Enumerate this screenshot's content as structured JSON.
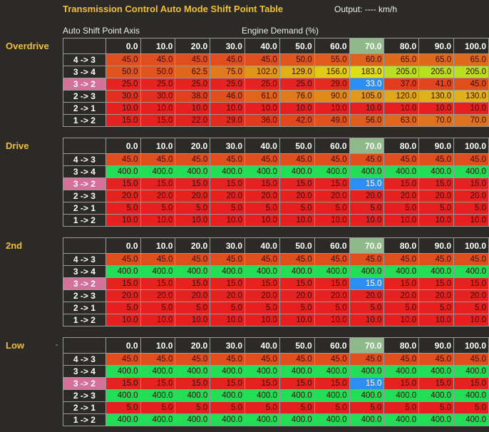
{
  "title": "Transmission Control Auto Mode Shift Point Table",
  "output": "Output: ---- km/h",
  "axis_label": "Auto Shift Point Axis",
  "demand_label": "Engine Demand (%)",
  "columns": [
    "0.0",
    "10.0",
    "20.0",
    "30.0",
    "40.0",
    "50.0",
    "60.0",
    "70.0",
    "80.0",
    "90.0",
    "100.0"
  ],
  "highlight_column": 7,
  "selected_row_label": "3 -> 2",
  "row_labels": [
    "4 -> 3",
    "3 -> 4",
    "3 -> 2",
    "2 -> 3",
    "2 -> 1",
    "1 -> 2"
  ],
  "colors": {
    "title": "#f0c030",
    "active_cell": "#2b8ef0",
    "selected_row": "#d4709a",
    "highlight_header": "#8fb98a"
  },
  "tables": [
    {
      "mode": "Overdrive",
      "marker": "",
      "rows": [
        [
          "45.0",
          "45.0",
          "45.0",
          "45.0",
          "45.0",
          "50.0",
          "55.0",
          "60.0",
          "65.0",
          "65.0",
          "65.0"
        ],
        [
          "50.0",
          "50.0",
          "62.5",
          "75.0",
          "102.0",
          "129.0",
          "156.0",
          "183.0",
          "205.0",
          "205.0",
          "205.0"
        ],
        [
          "25.0",
          "25.0",
          "25.0",
          "25.0",
          "25.0",
          "25.0",
          "29.0",
          "33.0",
          "37.0",
          "41.0",
          "45.0"
        ],
        [
          "30.0",
          "30.0",
          "38.0",
          "46.0",
          "61.0",
          "76.0",
          "90.0",
          "105.0",
          "120.0",
          "130.0",
          "130.0"
        ],
        [
          "10.0",
          "10.0",
          "10.0",
          "10.0",
          "10.0",
          "10.0",
          "10.0",
          "10.0",
          "10.0",
          "10.0",
          "10.0"
        ],
        [
          "15.0",
          "15.0",
          "22.0",
          "29.0",
          "36.0",
          "42.0",
          "49.0",
          "56.0",
          "63.0",
          "70.0",
          "70.0"
        ]
      ]
    },
    {
      "mode": "Drive",
      "marker": "",
      "rows": [
        [
          "45.0",
          "45.0",
          "45.0",
          "45.0",
          "45.0",
          "45.0",
          "45.0",
          "45.0",
          "45.0",
          "45.0",
          "45.0"
        ],
        [
          "400.0",
          "400.0",
          "400.0",
          "400.0",
          "400.0",
          "400.0",
          "400.0",
          "400.0",
          "400.0",
          "400.0",
          "400.0"
        ],
        [
          "15.0",
          "15.0",
          "15.0",
          "15.0",
          "15.0",
          "15.0",
          "15.0",
          "15.0",
          "15.0",
          "15.0",
          "15.0"
        ],
        [
          "20.0",
          "20.0",
          "20.0",
          "20.0",
          "20.0",
          "20.0",
          "20.0",
          "20.0",
          "20.0",
          "20.0",
          "20.0"
        ],
        [
          "5.0",
          "5.0",
          "5.0",
          "5.0",
          "5.0",
          "5.0",
          "5.0",
          "5.0",
          "5.0",
          "5.0",
          "5.0"
        ],
        [
          "10.0",
          "10.0",
          "10.0",
          "10.0",
          "10.0",
          "10.0",
          "10.0",
          "10.0",
          "10.0",
          "10.0",
          "10.0"
        ]
      ]
    },
    {
      "mode": "2nd",
      "marker": "",
      "rows": [
        [
          "45.0",
          "45.0",
          "45.0",
          "45.0",
          "45.0",
          "45.0",
          "45.0",
          "45.0",
          "45.0",
          "45.0",
          "45.0"
        ],
        [
          "400.0",
          "400.0",
          "400.0",
          "400.0",
          "400.0",
          "400.0",
          "400.0",
          "400.0",
          "400.0",
          "400.0",
          "400.0"
        ],
        [
          "15.0",
          "15.0",
          "15.0",
          "15.0",
          "15.0",
          "15.0",
          "15.0",
          "15.0",
          "15.0",
          "15.0",
          "15.0"
        ],
        [
          "20.0",
          "20.0",
          "20.0",
          "20.0",
          "20.0",
          "20.0",
          "20.0",
          "20.0",
          "20.0",
          "20.0",
          "20.0"
        ],
        [
          "5.0",
          "5.0",
          "5.0",
          "5.0",
          "5.0",
          "5.0",
          "5.0",
          "5.0",
          "5.0",
          "5.0",
          "5.0"
        ],
        [
          "10.0",
          "10.0",
          "10.0",
          "10.0",
          "10.0",
          "10.0",
          "10.0",
          "10.0",
          "10.0",
          "10.0",
          "10.0"
        ]
      ]
    },
    {
      "mode": "Low",
      "marker": "-",
      "rows": [
        [
          "45.0",
          "45.0",
          "45.0",
          "45.0",
          "45.0",
          "45.0",
          "45.0",
          "45.0",
          "45.0",
          "45.0",
          "45.0"
        ],
        [
          "400.0",
          "400.0",
          "400.0",
          "400.0",
          "400.0",
          "400.0",
          "400.0",
          "400.0",
          "400.0",
          "400.0",
          "400.0"
        ],
        [
          "15.0",
          "15.0",
          "15.0",
          "15.0",
          "15.0",
          "15.0",
          "15.0",
          "15.0",
          "15.0",
          "15.0",
          "15.0"
        ],
        [
          "400.0",
          "400.0",
          "400.0",
          "400.0",
          "400.0",
          "400.0",
          "400.0",
          "400.0",
          "400.0",
          "400.0",
          "400.0"
        ],
        [
          "5.0",
          "5.0",
          "5.0",
          "5.0",
          "5.0",
          "5.0",
          "5.0",
          "5.0",
          "5.0",
          "5.0",
          "5.0"
        ],
        [
          "400.0",
          "400.0",
          "400.0",
          "400.0",
          "400.0",
          "400.0",
          "400.0",
          "400.0",
          "400.0",
          "400.0",
          "400.0"
        ]
      ]
    }
  ]
}
